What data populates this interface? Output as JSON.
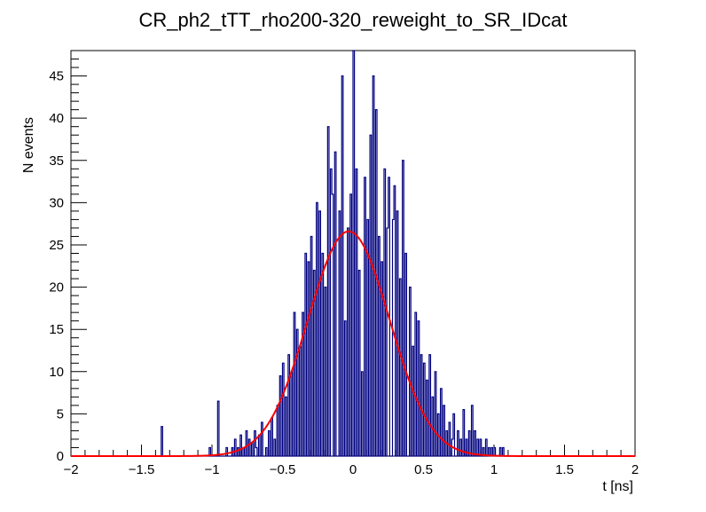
{
  "chart_data": {
    "type": "histogram",
    "title": "CR_ph2_tTT_rho200-320_reweight_to_SR_IDcat",
    "xlabel": "t [ns]",
    "ylabel": "N events",
    "xlim": [
      -2,
      2
    ],
    "ylim": [
      0,
      48
    ],
    "x_ticks": [
      -2,
      -1.5,
      -1,
      -0.5,
      0,
      0.5,
      1,
      1.5,
      2
    ],
    "x_tick_labels": [
      "−2",
      "−1.5",
      "−1",
      "−0.5",
      "0",
      "0.5",
      "1",
      "1.5",
      "2"
    ],
    "y_ticks": [
      0,
      5,
      10,
      15,
      20,
      25,
      30,
      35,
      40,
      45
    ],
    "y_tick_labels": [
      "0",
      "5",
      "10",
      "15",
      "20",
      "25",
      "30",
      "35",
      "40",
      "45"
    ],
    "histogram": {
      "name": "data",
      "color": "#000080",
      "bin_range": [
        -2,
        2
      ],
      "n_bins": 400,
      "nonzero_bins": [
        [
          -1.35,
          3.5
        ],
        [
          -1.02,
          1
        ],
        [
          -0.96,
          6.5
        ],
        [
          -0.9,
          1
        ],
        [
          -0.86,
          1
        ],
        [
          -0.84,
          2
        ],
        [
          -0.82,
          1
        ],
        [
          -0.8,
          2.5
        ],
        [
          -0.78,
          1
        ],
        [
          -0.76,
          3
        ],
        [
          -0.74,
          2
        ],
        [
          -0.72,
          1.5
        ],
        [
          -0.7,
          3
        ],
        [
          -0.68,
          1
        ],
        [
          -0.66,
          2.5
        ],
        [
          -0.64,
          4
        ],
        [
          -0.62,
          1
        ],
        [
          -0.6,
          3
        ],
        [
          -0.58,
          4.5
        ],
        [
          -0.56,
          2
        ],
        [
          -0.54,
          6
        ],
        [
          -0.52,
          9.5
        ],
        [
          -0.5,
          11
        ],
        [
          -0.48,
          7
        ],
        [
          -0.46,
          12
        ],
        [
          -0.44,
          10
        ],
        [
          -0.42,
          17
        ],
        [
          -0.4,
          15
        ],
        [
          -0.38,
          13
        ],
        [
          -0.36,
          17
        ],
        [
          -0.34,
          24
        ],
        [
          -0.32,
          23
        ],
        [
          -0.3,
          26
        ],
        [
          -0.28,
          22
        ],
        [
          -0.26,
          30
        ],
        [
          -0.24,
          29
        ],
        [
          -0.22,
          24
        ],
        [
          -0.2,
          20
        ],
        [
          -0.18,
          39
        ],
        [
          -0.16,
          34
        ],
        [
          -0.14,
          31
        ],
        [
          -0.12,
          36
        ],
        [
          -0.1,
          29
        ],
        [
          -0.08,
          45
        ],
        [
          -0.06,
          16
        ],
        [
          -0.04,
          27
        ],
        [
          -0.02,
          31
        ],
        [
          0.0,
          48
        ],
        [
          0.02,
          34
        ],
        [
          0.04,
          22
        ],
        [
          0.06,
          10
        ],
        [
          0.08,
          33
        ],
        [
          0.1,
          28
        ],
        [
          0.12,
          38
        ],
        [
          0.14,
          45
        ],
        [
          0.16,
          41
        ],
        [
          0.18,
          26
        ],
        [
          0.2,
          23
        ],
        [
          0.22,
          34
        ],
        [
          0.24,
          27
        ],
        [
          0.26,
          33
        ],
        [
          0.28,
          28
        ],
        [
          0.3,
          32
        ],
        [
          0.32,
          29
        ],
        [
          0.34,
          21
        ],
        [
          0.36,
          35
        ],
        [
          0.38,
          24
        ],
        [
          0.4,
          20
        ],
        [
          0.42,
          13
        ],
        [
          0.44,
          17
        ],
        [
          0.46,
          16
        ],
        [
          0.48,
          12
        ],
        [
          0.5,
          11
        ],
        [
          0.52,
          9
        ],
        [
          0.54,
          12
        ],
        [
          0.56,
          7
        ],
        [
          0.58,
          10
        ],
        [
          0.6,
          5
        ],
        [
          0.62,
          8
        ],
        [
          0.64,
          6
        ],
        [
          0.66,
          3
        ],
        [
          0.68,
          4
        ],
        [
          0.7,
          2
        ],
        [
          0.72,
          5
        ],
        [
          0.74,
          3
        ],
        [
          0.76,
          2
        ],
        [
          0.78,
          5.5
        ],
        [
          0.8,
          2
        ],
        [
          0.82,
          3
        ],
        [
          0.84,
          6
        ],
        [
          0.86,
          3
        ],
        [
          0.88,
          2
        ],
        [
          0.9,
          2
        ],
        [
          0.92,
          1
        ],
        [
          0.94,
          2
        ],
        [
          0.96,
          1
        ],
        [
          0.98,
          1
        ],
        [
          1.0,
          1
        ],
        [
          1.04,
          1
        ],
        [
          1.06,
          1
        ]
      ]
    },
    "fit": {
      "name": "gaussian-fit",
      "type": "gaussian",
      "color": "#ff0000",
      "amplitude": 26.6,
      "mean": -0.03,
      "sigma": 0.29
    }
  }
}
